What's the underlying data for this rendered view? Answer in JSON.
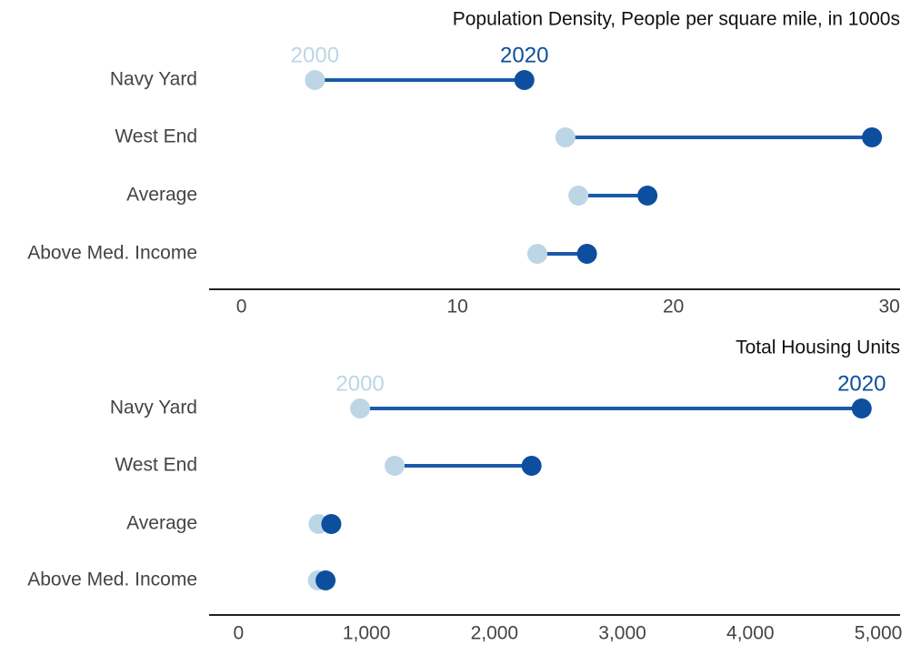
{
  "chart_data": [
    {
      "type": "dumbbell",
      "title": "Population Density, People per square mile, in 1000s",
      "categories": [
        "Navy Yard",
        "West End",
        "Average",
        "Above Med. Income"
      ],
      "series": [
        {
          "name": "2000",
          "color": "#bcd6e6",
          "values": [
            3.4,
            15.0,
            15.6,
            13.7
          ]
        },
        {
          "name": "2020",
          "color": "#0d4f9e",
          "values": [
            13.1,
            29.2,
            18.8,
            16.0
          ]
        }
      ],
      "xlim": [
        -1.5,
        30.5
      ],
      "xticks": [
        0,
        10,
        20,
        30
      ]
    },
    {
      "type": "dumbbell",
      "title": "Total Housing Units",
      "categories": [
        "Navy Yard",
        "West End",
        "Average",
        "Above Med. Income"
      ],
      "series": [
        {
          "name": "2000",
          "color": "#bcd6e6",
          "values": [
            950,
            1220,
            625,
            620
          ]
        },
        {
          "name": "2020",
          "color": "#0d4f9e",
          "values": [
            4870,
            2290,
            725,
            680
          ]
        }
      ],
      "xlim": [
        -230,
        5170
      ],
      "xticks": [
        0,
        {
          "value": 1000,
          "label": "1,000"
        },
        {
          "value": 2000,
          "label": "2,000"
        },
        {
          "value": 3000,
          "label": "3,000"
        },
        {
          "value": 4000,
          "label": "4,000"
        },
        {
          "value": 5000,
          "label": "5,000"
        }
      ]
    }
  ]
}
